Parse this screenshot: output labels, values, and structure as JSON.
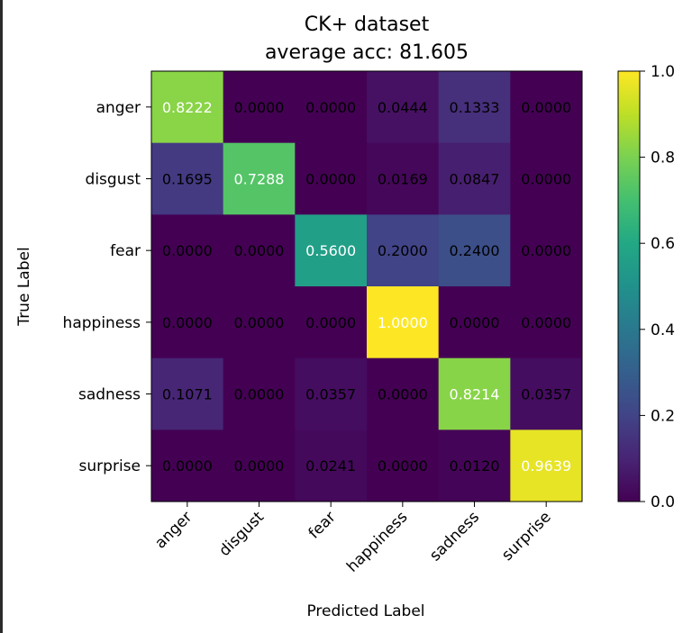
{
  "chart_data": {
    "type": "heatmap",
    "title_line1": "CK+ dataset",
    "title_line2": "average acc: 81.605",
    "xlabel": "Predicted Label",
    "ylabel": "True Label",
    "x_categories": [
      "anger",
      "disgust",
      "fear",
      "happiness",
      "sadness",
      "surprise"
    ],
    "y_categories": [
      "anger",
      "disgust",
      "fear",
      "happiness",
      "sadness",
      "surprise"
    ],
    "values": [
      [
        0.8222,
        0.0,
        0.0,
        0.0444,
        0.1333,
        0.0
      ],
      [
        0.1695,
        0.7288,
        0.0,
        0.0169,
        0.0847,
        0.0
      ],
      [
        0.0,
        0.0,
        0.56,
        0.2,
        0.24,
        0.0
      ],
      [
        0.0,
        0.0,
        0.0,
        1.0,
        0.0,
        0.0
      ],
      [
        0.1071,
        0.0,
        0.0357,
        0.0,
        0.8214,
        0.0357
      ],
      [
        0.0,
        0.0,
        0.0241,
        0.0,
        0.012,
        0.9639
      ]
    ],
    "value_format_decimals": 4,
    "colormap": "viridis",
    "vmin": 0.0,
    "vmax": 1.0,
    "colorbar_ticks": [
      "0.0",
      "0.2",
      "0.4",
      "0.6",
      "0.8",
      "1.0"
    ],
    "grid": false
  }
}
